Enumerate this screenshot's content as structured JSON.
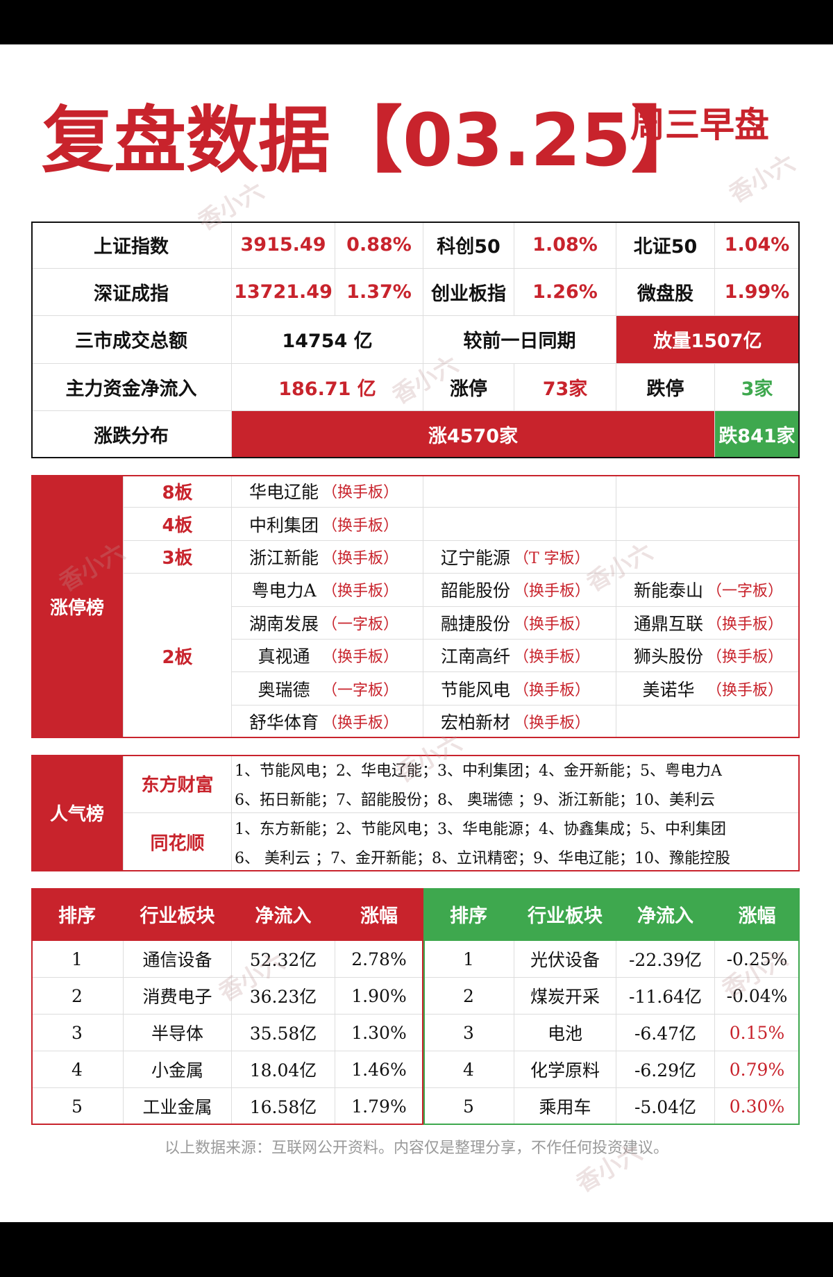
{
  "header": {
    "title": "复盘数据【03.25】",
    "subtitle": "周三早盘"
  },
  "index_table": {
    "rows": [
      [
        "上证指数",
        "3915.49",
        "0.88%",
        "科创50",
        "1.08%",
        "北证50",
        "1.04%"
      ],
      [
        "深证成指",
        "13721.49",
        "1.37%",
        "创业板指",
        "1.26%",
        "微盘股",
        "1.99%"
      ],
      [
        "三市成交总额",
        "14754 亿",
        "较前一日同期",
        "放量1507亿"
      ],
      [
        "主力资金净流入",
        "186.71 亿",
        "涨停",
        "73家",
        "跌停",
        "3家"
      ],
      [
        "涨跌分布",
        "涨4570家",
        "跌841家"
      ]
    ]
  },
  "limit_up": {
    "title": "涨停榜",
    "tiers": [
      {
        "board": "8板",
        "stocks": [
          {
            "name": "华电辽能",
            "tag": "（换手板）"
          }
        ]
      },
      {
        "board": "4板",
        "stocks": [
          {
            "name": "中利集团",
            "tag": "（换手板）"
          }
        ]
      },
      {
        "board": "3板",
        "stocks": [
          {
            "name": "浙江新能",
            "tag": "（换手板）"
          },
          {
            "name": "辽宁能源",
            "tag": "（T 字板）"
          }
        ]
      },
      {
        "board": "2板",
        "stocks": [
          {
            "name": "粤电力A",
            "tag": "（换手板）"
          },
          {
            "name": "韶能股份",
            "tag": "（换手板）"
          },
          {
            "name": "新能泰山",
            "tag": "（一字板）"
          },
          {
            "name": "湖南发展",
            "tag": "（一字板）"
          },
          {
            "name": "融捷股份",
            "tag": "（换手板）"
          },
          {
            "name": "通鼎互联",
            "tag": "（换手板）"
          },
          {
            "name": "真视通",
            "tag": "（换手板）"
          },
          {
            "name": "江南高纤",
            "tag": "（换手板）"
          },
          {
            "name": "狮头股份",
            "tag": "（换手板）"
          },
          {
            "name": "奥瑞德",
            "tag": "（一字板）"
          },
          {
            "name": "节能风电",
            "tag": "（换手板）"
          },
          {
            "name": "美诺华",
            "tag": "（换手板）"
          },
          {
            "name": "舒华体育",
            "tag": "（换手板）"
          },
          {
            "name": "宏柏新材",
            "tag": "（换手板）"
          }
        ]
      }
    ]
  },
  "popularity": {
    "title": "人气榜",
    "sources": [
      {
        "name": "东方财富",
        "lines": [
          "1、节能风电；2、华电辽能；3、中利集团；4、金开新能；5、粤电力A",
          "6、拓日新能；7、韶能股份；8、 奥瑞德 ；9、浙江新能；10、美利云"
        ]
      },
      {
        "name": "同花顺",
        "lines": [
          "1、东方新能；2、节能风电；3、华电能源；4、协鑫集成；5、中利集团",
          "6、 美利云 ；7、金开新能；8、立讯精密；9、华电辽能；10、豫能控股"
        ]
      }
    ]
  },
  "sectors": {
    "inflow": {
      "headers": [
        "排序",
        "行业板块",
        "净流入",
        "涨幅"
      ],
      "rows": [
        [
          "1",
          "通信设备",
          "52.32亿",
          "2.78%"
        ],
        [
          "2",
          "消费电子",
          "36.23亿",
          "1.90%"
        ],
        [
          "3",
          "半导体",
          "35.58亿",
          "1.30%"
        ],
        [
          "4",
          "小金属",
          "18.04亿",
          "1.46%"
        ],
        [
          "5",
          "工业金属",
          "16.58亿",
          "1.79%"
        ]
      ]
    },
    "outflow": {
      "headers": [
        "排序",
        "行业板块",
        "净流入",
        "涨幅"
      ],
      "rows": [
        [
          "1",
          "光伏设备",
          "-22.39亿",
          "-0.25%"
        ],
        [
          "2",
          "煤炭开采",
          "-11.64亿",
          "-0.04%"
        ],
        [
          "3",
          "电池",
          "-6.47亿",
          "0.15%"
        ],
        [
          "4",
          "化学原料",
          "-6.29亿",
          "0.79%"
        ],
        [
          "5",
          "乘用车",
          "-5.04亿",
          "0.30%"
        ]
      ]
    }
  },
  "footer": "以上数据来源：互联网公开资料。内容仅是整理分享，不作任何投资建议。",
  "watermarks": [
    "香小六",
    "香小六",
    "香小六",
    "香小六",
    "香小六",
    "香小六",
    "香小六",
    "香小六",
    "香小六"
  ]
}
